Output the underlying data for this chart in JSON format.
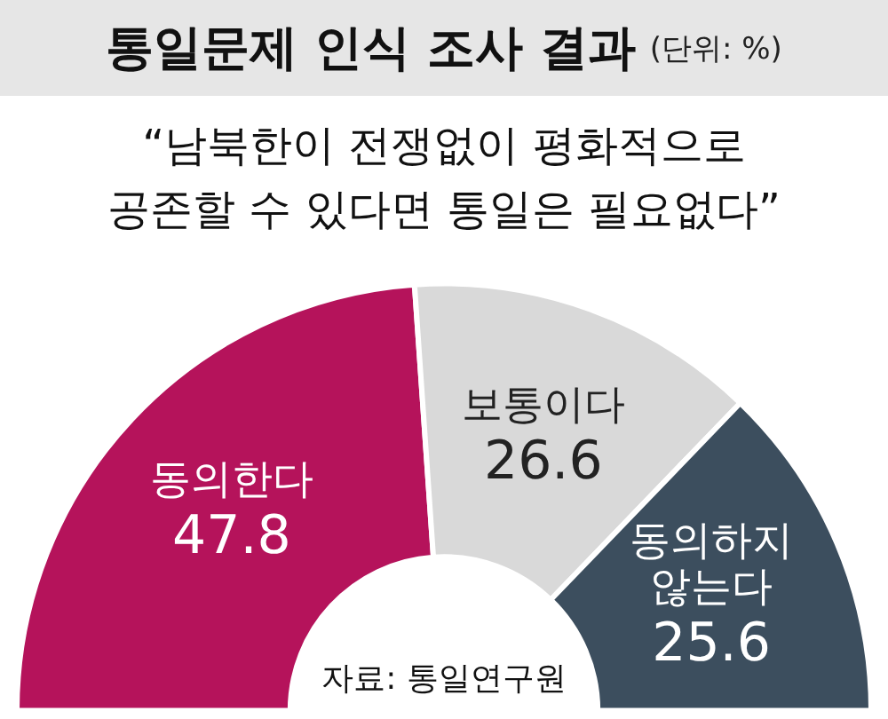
{
  "chart_data": {
    "type": "donut",
    "title": "통일문제 인식 조사 결과",
    "subtitle": "“남북한이 전쟁없이 평화적으로\n공존할 수 있다면 통일은 필요없다”",
    "categories": [
      "동의한다",
      "보통이다",
      "동의하지\n않는다"
    ],
    "values": [
      47.8,
      26.6,
      25.6
    ],
    "colors": [
      "#b5135b",
      "#d9d9d9",
      "#3c4e5e"
    ],
    "data_labels": true,
    "legend": false,
    "annotations": [
      "(단위: %)",
      "자료: 통일연구원"
    ]
  }
}
